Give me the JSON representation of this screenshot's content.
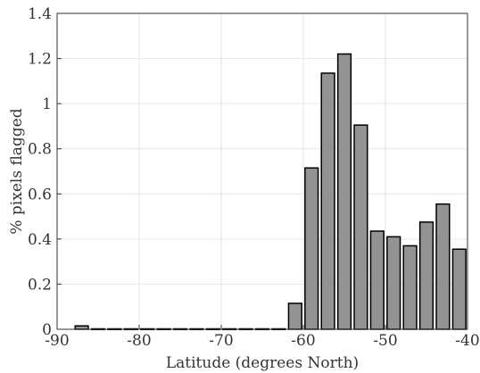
{
  "chart_data": {
    "type": "bar",
    "xlabel": "Latitude (degrees North)",
    "ylabel": "% pixels flagged",
    "xlim": [
      -90,
      -40
    ],
    "ylim": [
      0,
      1.4
    ],
    "x_ticks": [
      -90,
      -80,
      -70,
      -60,
      -50,
      -40
    ],
    "y_ticks": [
      0,
      0.2,
      0.4,
      0.6,
      0.8,
      1,
      1.2,
      1.4
    ],
    "x_tick_labels": [
      "-90",
      "-80",
      "-70",
      "-60",
      "-50",
      "-40"
    ],
    "y_tick_labels": [
      "0",
      "0.2",
      "0.4",
      "0.6",
      "0.8",
      "1",
      "1.2",
      "1.4"
    ],
    "grid": true,
    "bar_width": 1.6,
    "x": [
      -87,
      -85,
      -83,
      -81,
      -79,
      -77,
      -75,
      -73,
      -71,
      -69,
      -67,
      -65,
      -63,
      -61,
      -59,
      -57,
      -55,
      -53,
      -51,
      -49,
      -47,
      -45,
      -43,
      -41
    ],
    "values": [
      0.015,
      0.002,
      0.002,
      0.002,
      0.002,
      0.002,
      0.002,
      0.002,
      0.002,
      0.002,
      0.002,
      0.002,
      0.002,
      0.115,
      0.715,
      1.135,
      1.22,
      0.905,
      0.435,
      0.41,
      0.37,
      0.475,
      0.555,
      0.355
    ],
    "bar_color": "#939393",
    "edge_color": "#000000",
    "grid_color": "#e6e6e6",
    "axis_color": "#333333"
  }
}
